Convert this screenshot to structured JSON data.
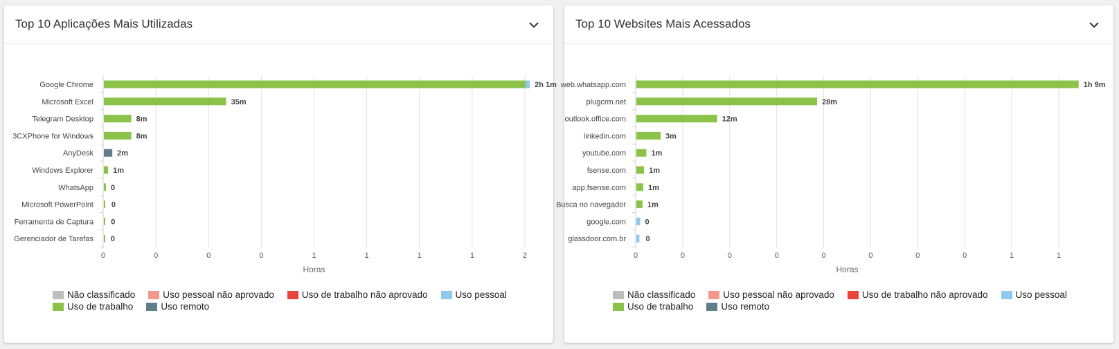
{
  "legend": [
    {
      "label": "Não classificado",
      "color": "#bdbdbd"
    },
    {
      "label": "Uso pessoal não aprovado",
      "color": "#f4978e"
    },
    {
      "label": "Uso de trabalho não aprovado",
      "color": "#e8443a"
    },
    {
      "label": "Uso pessoal",
      "color": "#90c8f0"
    },
    {
      "label": "Uso de trabalho",
      "color": "#8bc34a"
    },
    {
      "label": "Uso remoto",
      "color": "#607d8b"
    }
  ],
  "chart_data": [
    {
      "type": "bar",
      "orientation": "horizontal",
      "stacked": true,
      "title": "Top 10 Aplicações Mais Utilizadas",
      "xlabel": "Horas",
      "ylabel": "",
      "xlim": [
        0,
        2
      ],
      "x_tick_labels": [
        "0",
        "0",
        "0",
        "0",
        "1",
        "1",
        "1",
        "1",
        "2"
      ],
      "grid": true,
      "categories": [
        "Google Chrome",
        "Microsoft Excel",
        "Telegram Desktop",
        "3CXPhone for Windows",
        "AnyDesk",
        "Windows Explorer",
        "WhatsApp",
        "Microsoft PowerPoint",
        "Ferramenta de Captura",
        "Gerenciador de Tarefas"
      ],
      "data_labels": [
        "2h 1m",
        "35m",
        "8m",
        "8m",
        "2m",
        "1m",
        "0",
        "0",
        "0",
        "0"
      ],
      "series": [
        {
          "name": "Uso de trabalho",
          "color": "#8bc34a",
          "values": [
            2.0,
            0.58,
            0.13,
            0.13,
            0,
            0.02,
            0.01,
            0.006,
            0.004,
            0.003
          ]
        },
        {
          "name": "Uso pessoal",
          "color": "#90c8f0",
          "values": [
            0.02,
            0,
            0,
            0,
            0,
            0,
            0,
            0,
            0,
            0
          ]
        },
        {
          "name": "Uso remoto",
          "color": "#607d8b",
          "values": [
            0,
            0,
            0,
            0,
            0.04,
            0,
            0,
            0,
            0,
            0
          ]
        }
      ]
    },
    {
      "type": "bar",
      "orientation": "horizontal",
      "stacked": true,
      "title": "Top 10 Websites Mais Acessados",
      "xlabel": "Horas",
      "ylabel": "",
      "xlim": [
        0,
        1.1
      ],
      "x_tick_labels": [
        "0",
        "0",
        "0",
        "0",
        "0",
        "0",
        "0",
        "0",
        "1",
        "1"
      ],
      "grid": true,
      "categories": [
        "web.whatsapp.com",
        "plugcrm.net",
        "outlook.office.com",
        "linkedin.com",
        "youtube.com",
        "fsense.com",
        "app.fsense.com",
        "Busca no navegador",
        "google.com",
        "glassdoor.com.br"
      ],
      "data_labels": [
        "1h 9m",
        "28m",
        "12m",
        "3m",
        "1m",
        "1m",
        "1m",
        "1m",
        "0",
        "0"
      ],
      "series": [
        {
          "name": "Uso de trabalho",
          "color": "#8bc34a",
          "values": [
            1.15,
            0.47,
            0.21,
            0.063,
            0.026,
            0.02,
            0.018,
            0.016,
            0,
            0
          ]
        },
        {
          "name": "Uso pessoal",
          "color": "#90c8f0",
          "values": [
            0,
            0,
            0,
            0,
            0,
            0,
            0,
            0,
            0.01,
            0.008
          ]
        }
      ]
    }
  ]
}
